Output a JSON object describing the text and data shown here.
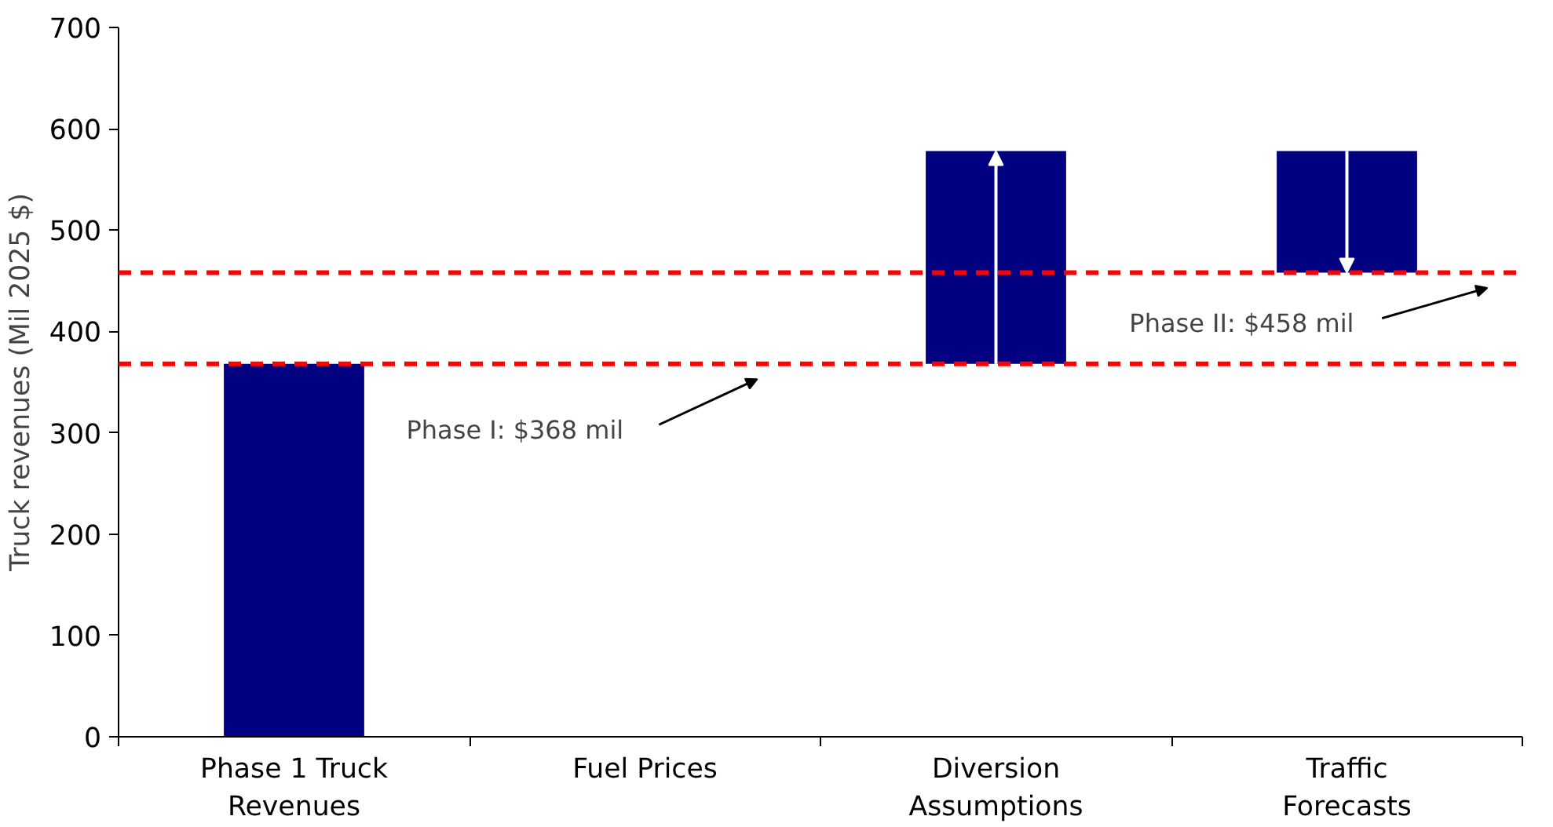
{
  "chart_data": {
    "type": "bar",
    "ylabel": "Truck revenues (Mil 2025 $)",
    "categories": [
      "Phase 1 Truck Revenues",
      "Fuel Prices",
      "Diversion Assumptions",
      "Traffic Forecasts"
    ],
    "values": [
      368,
      null,
      210,
      120
    ],
    "base": [
      0,
      null,
      368,
      458
    ],
    "color": "#000080",
    "ylim": [
      0,
      700
    ],
    "yticks": [
      0,
      100,
      200,
      300,
      400,
      500,
      600,
      700
    ],
    "grid": false,
    "ref_lines": [
      {
        "axis": "y",
        "value": 368,
        "label": "Phase I: $368 mil",
        "color": "#ff0000",
        "line_style": "dashed"
      },
      {
        "axis": "y",
        "value": 458,
        "label": "Phase II: $458 mil",
        "color": "#ff0000",
        "line_style": "dashed"
      }
    ]
  }
}
